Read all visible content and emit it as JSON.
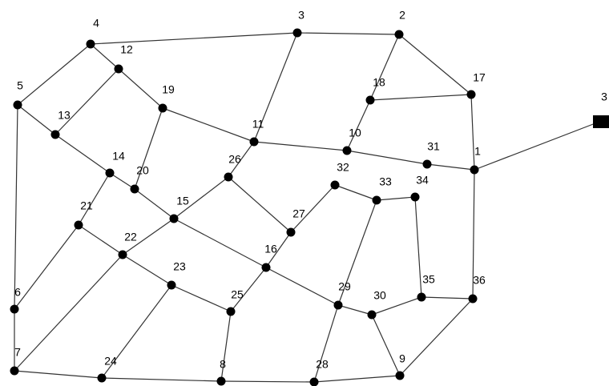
{
  "nodes": [
    "1",
    "2",
    "3",
    "4",
    "5",
    "6",
    "7",
    "8",
    "9",
    "10",
    "11",
    "12",
    "13",
    "14",
    "15",
    "16",
    "17",
    "18",
    "19",
    "20",
    "21",
    "22",
    "23",
    "24",
    "25",
    "26",
    "27",
    "28",
    "29",
    "30",
    "31",
    "32",
    "33",
    "34",
    "35",
    "36",
    "3"
  ]
}
